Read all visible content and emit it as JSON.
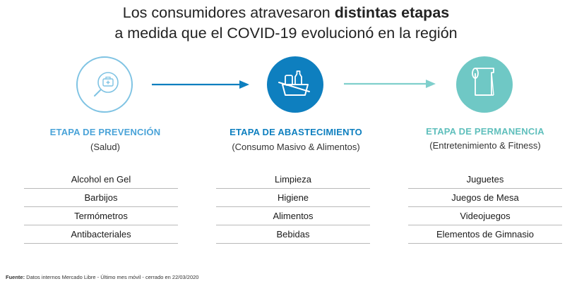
{
  "title": {
    "line1_prefix": "Los consumidores atravesaron ",
    "line1_bold": "distintas etapas",
    "line2": "a medida que el COVID-19 evolucionó en la región"
  },
  "stages": [
    {
      "title": "ETAPA DE PREVENCIÓN",
      "subtitle": "(Salud)",
      "color": "#4aa3d8",
      "icon": "first-aid-magnifier-icon",
      "items": [
        "Alcohol en Gel",
        "Barbijos",
        "Termómetros",
        "Antibacteriales"
      ]
    },
    {
      "title": "ETAPA DE ABASTECIMIENTO",
      "subtitle": "(Consumo Masivo & Alimentos)",
      "color": "#0e7fbf",
      "icon": "shopping-basket-icon",
      "items": [
        "Limpieza",
        "Higiene",
        "Alimentos",
        "Bebidas"
      ]
    },
    {
      "title": "ETAPA DE PERMANENCIA",
      "subtitle": "(Entretenimiento & Fitness)",
      "color": "#6fc8c5",
      "icon": "yoga-mat-icon",
      "items": [
        "Juguetes",
        "Juegos de Mesa",
        "Videojuegos",
        "Elementos de Gimnasio"
      ]
    }
  ],
  "footer": {
    "label": "Fuente:",
    "text": " Datos internos Mercado Libre - Último mes móvil - cerrado en 22/03/2020"
  }
}
